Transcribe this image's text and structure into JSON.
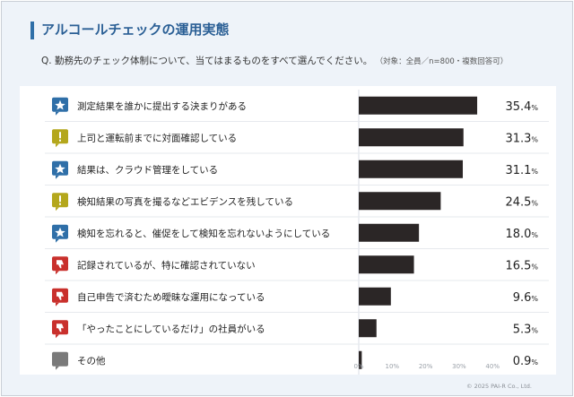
{
  "header": {
    "title": "アルコールチェックの運用実態",
    "question": "Q. 勤務先のチェック体制について、当てはまるものをすべて選んでください。",
    "question_note": "（対象：全員／n=800・複数回答可）"
  },
  "footer": {
    "copyright": "© 2025 PAI-R Co., Ltd."
  },
  "chart_data": {
    "type": "bar",
    "orientation": "horizontal",
    "categories": [
      "測定結果を誰かに提出する決まりがある",
      "上司と運転前までに対面確認している",
      "結果は、クラウド管理をしている",
      "検知結果の写真を撮るなどエビデンスを残している",
      "検知を忘れると、催促をして検知を忘れないようにしている",
      "記録されているが、特に確認されていない",
      "自己申告で済むため曖昧な運用になっている",
      "「やったことにしているだけ」の社員がいる",
      "その他"
    ],
    "values": [
      35.4,
      31.3,
      31.1,
      24.5,
      18.0,
      16.5,
      9.6,
      5.3,
      0.9
    ],
    "value_labels": [
      "35.4",
      "31.3",
      "31.1",
      "24.5",
      "18.0",
      "16.5",
      "9.6",
      "5.3",
      "0.9"
    ],
    "value_suffix": "%",
    "icons": [
      "star-icon",
      "exclamation-icon",
      "star-icon",
      "exclamation-icon",
      "star-icon",
      "thumbs-down-icon",
      "thumbs-down-icon",
      "thumbs-down-icon",
      "speech-bubble-icon"
    ],
    "icon_colors": [
      "#2f6fa8",
      "#b4a71c",
      "#2f6fa8",
      "#b4a71c",
      "#2f6fa8",
      "#c9302c",
      "#c9302c",
      "#c9302c",
      "#7a7a7a"
    ],
    "xlim": [
      0,
      40
    ],
    "xticks": [
      "0%",
      "10%",
      "20%",
      "30%",
      "40%"
    ],
    "xtick_values": [
      0,
      10,
      20,
      30,
      40
    ],
    "bar_color": "#2b2626",
    "grid": false
  }
}
